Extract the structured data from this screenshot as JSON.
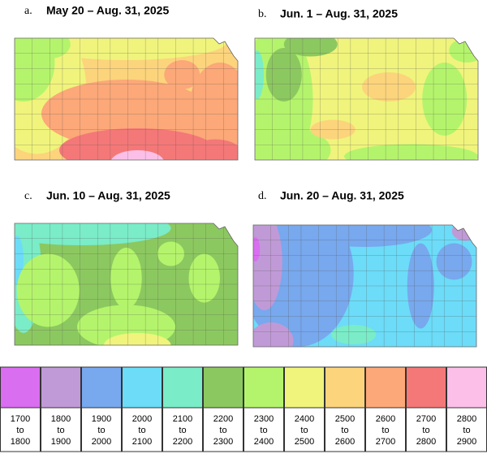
{
  "panels": [
    {
      "letter": "a.",
      "title": "May 20 – Aug. 31, 2025"
    },
    {
      "letter": "b.",
      "title": "Jun. 1 – Aug. 31, 2025"
    },
    {
      "letter": "c.",
      "title": "Jun. 10 – Aug. 31, 2025"
    },
    {
      "letter": "d.",
      "title": "Jun. 20 – Aug. 31, 2025"
    }
  ],
  "legend": {
    "joiner": "to",
    "items": [
      {
        "color": "#d96ef0",
        "from": 1700,
        "to": 1800
      },
      {
        "color": "#c09ad6",
        "from": 1800,
        "to": 1900
      },
      {
        "color": "#78a8ee",
        "from": 1900,
        "to": 2000
      },
      {
        "color": "#6cdcf8",
        "from": 2000,
        "to": 2100
      },
      {
        "color": "#7aecc8",
        "from": 2100,
        "to": 2200
      },
      {
        "color": "#8cc860",
        "from": 2200,
        "to": 2300
      },
      {
        "color": "#b4f46c",
        "from": 2300,
        "to": 2400
      },
      {
        "color": "#f0f47c",
        "from": 2400,
        "to": 2500
      },
      {
        "color": "#fcd47c",
        "from": 2500,
        "to": 2600
      },
      {
        "color": "#fca878",
        "from": 2600,
        "to": 2700
      },
      {
        "color": "#f47878",
        "from": 2700,
        "to": 2800
      },
      {
        "color": "#fcc0e8",
        "from": 2800,
        "to": 2900
      }
    ]
  }
}
